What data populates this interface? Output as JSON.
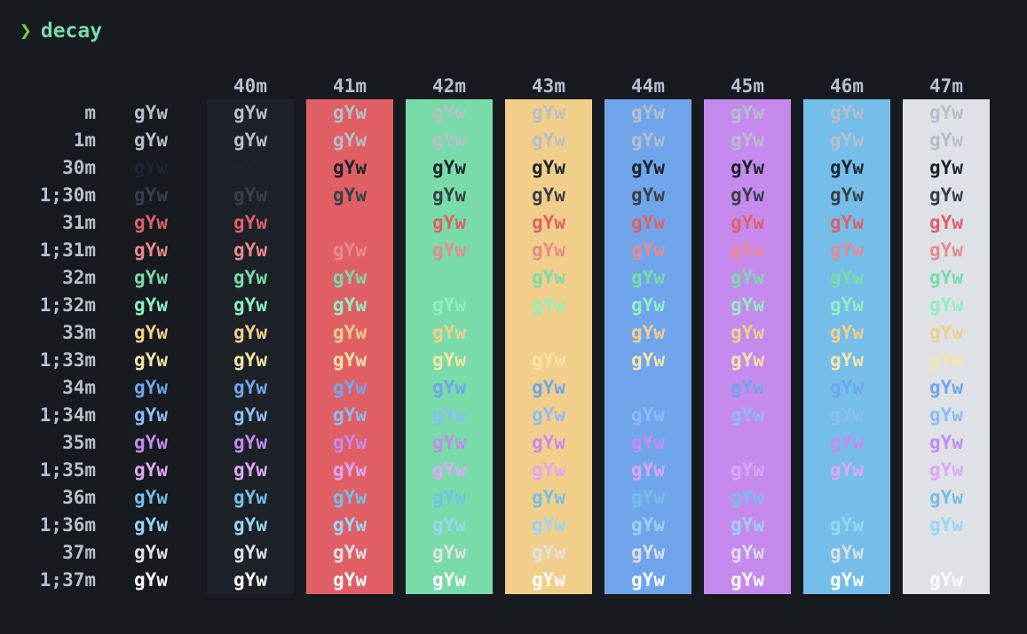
{
  "prompt": {
    "symbol": "❯",
    "command": "decay"
  },
  "colors": {
    "foreground": "#b6beca",
    "header": "#b6beca",
    "backgrounds": [
      "#1d2228",
      "#e05f65",
      "#78dba9",
      "#f1cf8a",
      "#70a5eb",
      "#c68aee",
      "#74bee9",
      "#dee1e6"
    ],
    "fg": {
      "default": "#b6beca",
      "black": "#1c252c",
      "bright_black": "#384148",
      "red": "#e05f65",
      "bright_red": "#e9898d",
      "green": "#78dba9",
      "bright_green": "#8ff0c0",
      "yellow": "#f1cf8a",
      "bright_yellow": "#f7e4a6",
      "blue": "#70a5eb",
      "bright_blue": "#8cbcf5",
      "magenta": "#c68aee",
      "bright_magenta": "#e0a6f7",
      "cyan": "#74bee9",
      "bright_cyan": "#97d6f5",
      "white": "#dee1e6",
      "bright_white": "#ffffff"
    }
  },
  "headers": [
    "40m",
    "41m",
    "42m",
    "43m",
    "44m",
    "45m",
    "46m",
    "47m"
  ],
  "rows": [
    {
      "label": "m",
      "fg": "default"
    },
    {
      "label": "1m",
      "fg": "default"
    },
    {
      "label": "30m",
      "fg": "black"
    },
    {
      "label": "1;30m",
      "fg": "bright_black"
    },
    {
      "label": "31m",
      "fg": "red"
    },
    {
      "label": "1;31m",
      "fg": "bright_red"
    },
    {
      "label": "32m",
      "fg": "green"
    },
    {
      "label": "1;32m",
      "fg": "bright_green"
    },
    {
      "label": "33m",
      "fg": "yellow"
    },
    {
      "label": "1;33m",
      "fg": "bright_yellow"
    },
    {
      "label": "34m",
      "fg": "blue"
    },
    {
      "label": "1;34m",
      "fg": "bright_blue"
    },
    {
      "label": "35m",
      "fg": "magenta"
    },
    {
      "label": "1;35m",
      "fg": "bright_magenta"
    },
    {
      "label": "36m",
      "fg": "cyan"
    },
    {
      "label": "1;36m",
      "fg": "bright_cyan"
    },
    {
      "label": "37m",
      "fg": "white"
    },
    {
      "label": "1;37m",
      "fg": "bright_white"
    }
  ],
  "sample_text": "gYw"
}
